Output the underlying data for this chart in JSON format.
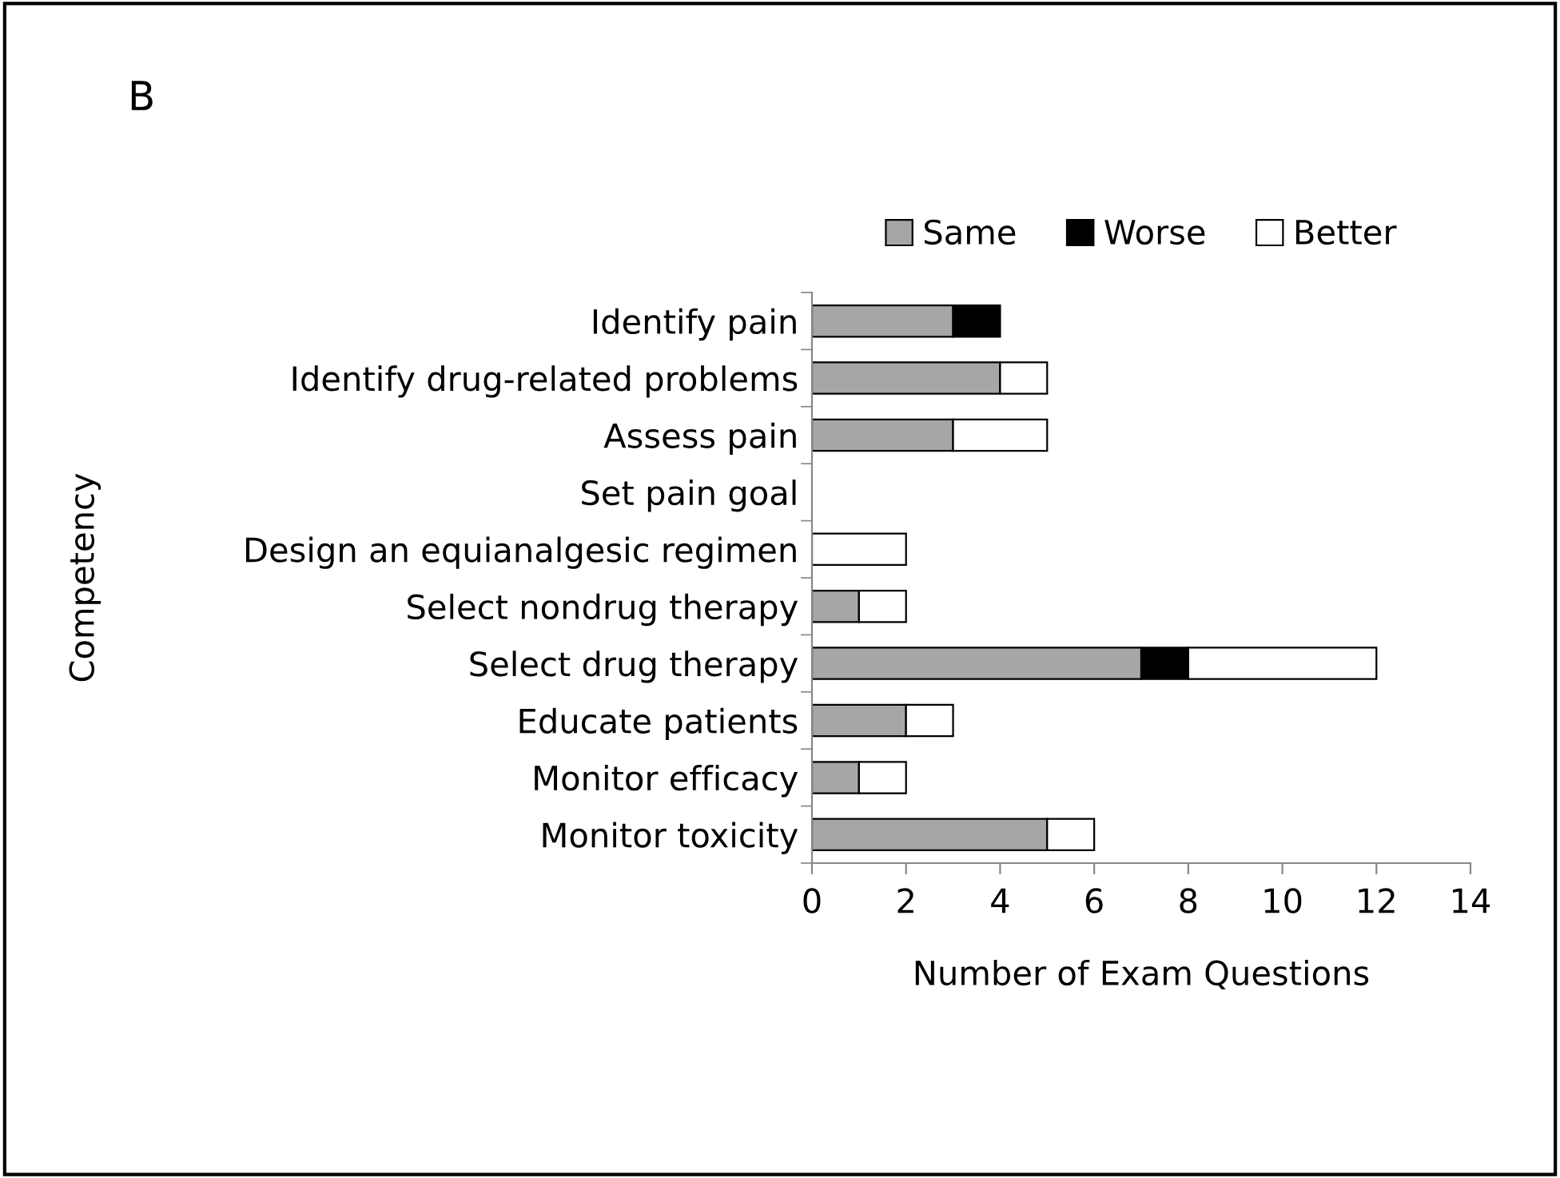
{
  "chart_data": {
    "type": "bar",
    "orientation": "horizontal",
    "stacked": true,
    "title": "B",
    "xlabel": "Number of Exam Questions",
    "ylabel": "Competency",
    "categories": [
      "Identify pain",
      "Identify drug-related problems",
      "Assess pain",
      "Set pain goal",
      "Design an equianalgesic regimen",
      "Select nondrug therapy",
      "Select drug therapy",
      "Educate patients",
      "Monitor efficacy",
      "Monitor toxicity"
    ],
    "series": [
      {
        "name": "Same",
        "color": "#a6a6a6",
        "values": [
          3,
          4,
          3,
          0,
          0,
          1,
          7,
          2,
          1,
          5
        ]
      },
      {
        "name": "Worse",
        "color": "#000000",
        "values": [
          1,
          0,
          0,
          0,
          0,
          0,
          1,
          0,
          0,
          0
        ]
      },
      {
        "name": "Better",
        "color": "#ffffff",
        "values": [
          0,
          1,
          2,
          0,
          2,
          1,
          4,
          1,
          1,
          1
        ]
      }
    ],
    "xlim": [
      0,
      14
    ],
    "xticks": [
      0,
      2,
      4,
      6,
      8,
      10,
      12,
      14
    ],
    "grid": false,
    "legend": "top"
  }
}
